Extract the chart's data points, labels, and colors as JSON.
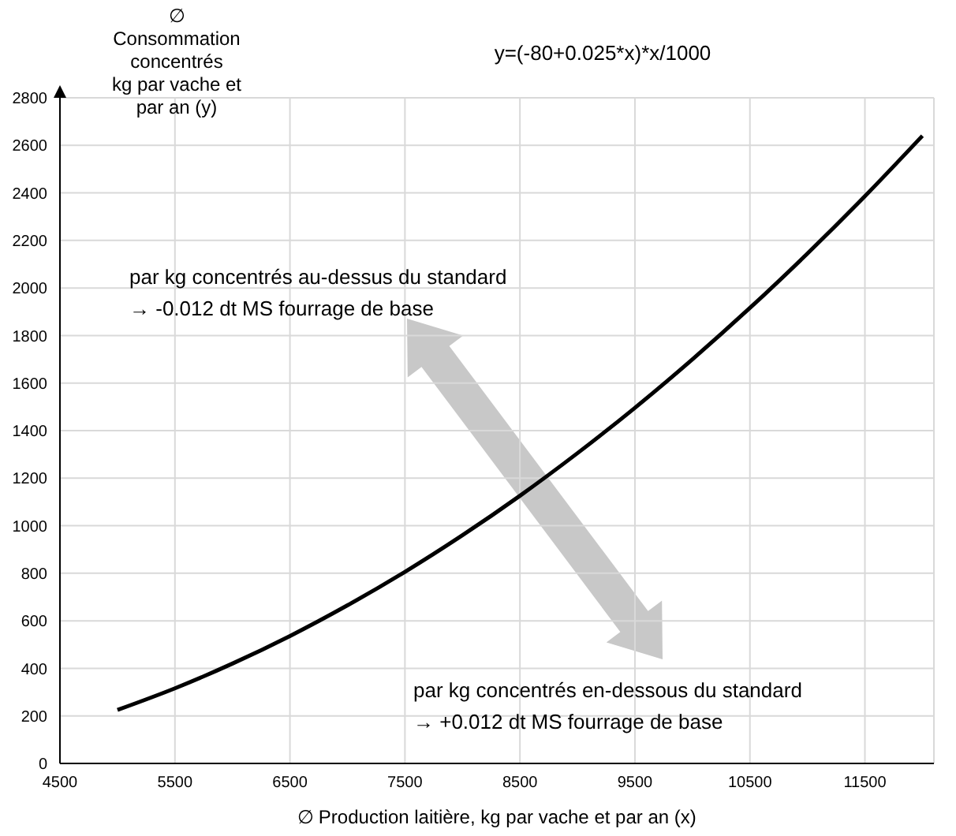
{
  "chart_data": {
    "type": "line",
    "xlabel": "∅ Production laitière, kg par vache et par an (x)",
    "ylabel": "∅\nConsommation\nconcentrés\nkg par vache et\npar an (y)",
    "x": [
      5000,
      5500,
      6000,
      6500,
      7000,
      7500,
      8000,
      8500,
      9000,
      9500,
      10000,
      10500,
      11000,
      11500,
      12000
    ],
    "series": [
      {
        "color": "#000000",
        "values": [
          225,
          316,
          420,
          536,
          665,
          806,
          960,
          1126,
          1305,
          1496,
          1700,
          1916,
          2145,
          2386,
          2640
        ]
      }
    ],
    "xlim": [
      4500,
      12100
    ],
    "xticks": [
      4500,
      5500,
      6500,
      7500,
      8500,
      9500,
      10500,
      11500
    ],
    "ylim": [
      0,
      2800
    ],
    "yticks": [
      0,
      200,
      400,
      600,
      800,
      1000,
      1200,
      1400,
      1600,
      1800,
      2000,
      2200,
      2400,
      2600,
      2800
    ],
    "grid": true,
    "legend": false,
    "marker": "none",
    "line_style": "solid",
    "annotations": [
      "y=(-80+0.025*x)*x/1000",
      "par kg concentrés au-dessus du standard\n→ -0.012 dt MS fourrage de base",
      "par kg concentrés en-dessous du standard\n→ +0.012 dt MS fourrage de base"
    ]
  }
}
